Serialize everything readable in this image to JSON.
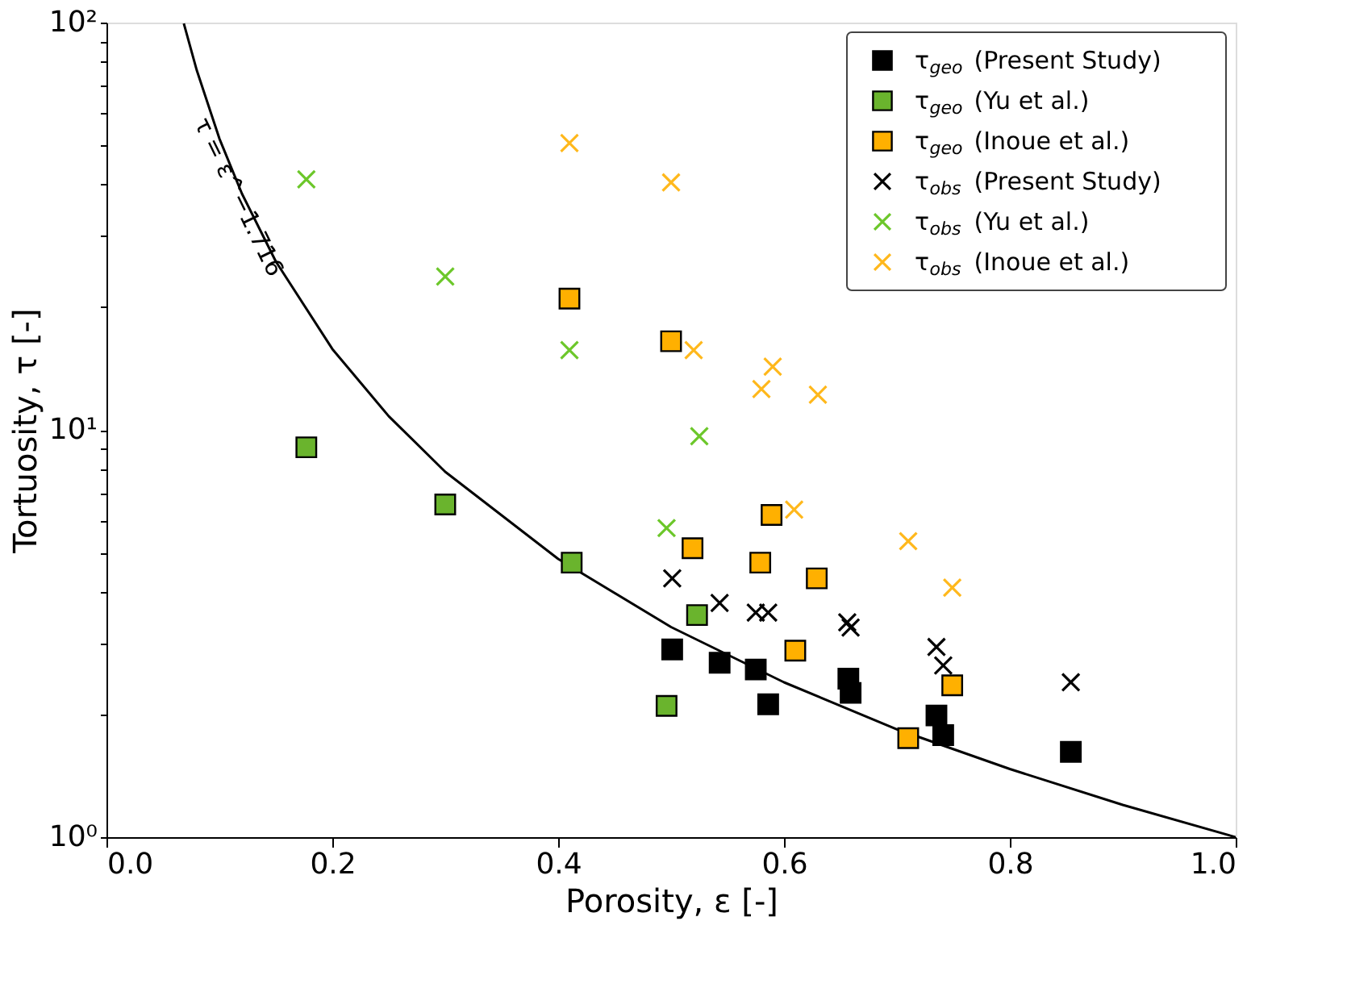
{
  "chart_data": {
    "type": "scatter",
    "xlabel": "Porosity, ε [-]",
    "ylabel": "Tortuosity, τ [-]",
    "log": "y",
    "grid": false,
    "legend": "top right",
    "xlim": [
      0,
      1
    ],
    "ylim": [
      1,
      100
    ],
    "xticks": [
      {
        "value": 0,
        "label": "0.0"
      },
      {
        "value": 0.2,
        "label": "0.2"
      },
      {
        "value": 0.4,
        "label": "0.4"
      },
      {
        "value": 0.6,
        "label": "0.6"
      },
      {
        "value": 0.8,
        "label": "0.8"
      },
      {
        "value": 1,
        "label": "1.0"
      }
    ],
    "yticks": [
      {
        "value": 1,
        "label": "10⁰"
      },
      {
        "value": 2,
        "label": null
      },
      {
        "value": 3,
        "label": null
      },
      {
        "value": 4,
        "label": null
      },
      {
        "value": 5,
        "label": null
      },
      {
        "value": 6,
        "label": null
      },
      {
        "value": 7,
        "label": null
      },
      {
        "value": 8,
        "label": null
      },
      {
        "value": 9,
        "label": null
      },
      {
        "value": 10,
        "label": "10¹"
      },
      {
        "value": 20,
        "label": null
      },
      {
        "value": 30,
        "label": null
      },
      {
        "value": 40,
        "label": null
      },
      {
        "value": 50,
        "label": null
      },
      {
        "value": 60,
        "label": null
      },
      {
        "value": 70,
        "label": null
      },
      {
        "value": 80,
        "label": null
      },
      {
        "value": 90,
        "label": null
      },
      {
        "value": 100,
        "label": "10²"
      }
    ],
    "annotations": [
      "τ = ε^−1.716"
    ],
    "series": [
      {
        "type": "line",
        "color": "#000000",
        "marker": "none",
        "line_style": "solid",
        "x": [
          0.0685,
          0.08,
          0.1,
          0.12,
          0.15,
          0.2,
          0.25,
          0.3,
          0.4,
          0.5,
          0.6,
          0.7,
          0.8,
          0.9,
          1.0
        ],
        "values": [
          99.5,
          76.3,
          51.9,
          38.0,
          25.9,
          15.8,
          10.8,
          7.89,
          4.82,
          3.28,
          2.4,
          1.84,
          1.47,
          1.2,
          1.0
        ]
      },
      {
        "name": "τ$_{geo}$ (Present Study)",
        "marker": "square",
        "color": "#000000",
        "x": [
          0.501,
          0.543,
          0.575,
          0.586,
          0.657,
          0.659,
          0.735,
          0.741,
          0.854
        ],
        "values": [
          2.89,
          2.68,
          2.58,
          2.12,
          2.45,
          2.26,
          1.99,
          1.78,
          1.62
        ]
      },
      {
        "name": "τ$_{geo}$ (Yu et al.)",
        "marker": "square",
        "color": "#6ab42d",
        "x": [
          0.177,
          0.3,
          0.412,
          0.523,
          0.496
        ],
        "values": [
          9.06,
          6.56,
          4.72,
          3.51,
          2.1
        ]
      },
      {
        "name": "τ$_{geo}$ (Inoue et al.)",
        "marker": "square",
        "color": "#ffb000",
        "x": [
          0.41,
          0.5,
          0.589,
          0.519,
          0.579,
          0.629,
          0.61,
          0.749,
          0.71
        ],
        "values": [
          21.0,
          16.5,
          6.18,
          5.12,
          4.72,
          4.32,
          2.87,
          2.36,
          1.75
        ]
      },
      {
        "name": "τ$_{obs}$ (Present Study)",
        "marker": "cross",
        "color": "#000000",
        "x": [
          0.501,
          0.543,
          0.575,
          0.586,
          0.656,
          0.659,
          0.735,
          0.741,
          0.854
        ],
        "values": [
          4.32,
          3.76,
          3.56,
          3.56,
          3.37,
          3.27,
          2.93,
          2.64,
          2.4
        ]
      },
      {
        "name": "τ$_{obs}$ (Yu et al.)",
        "marker": "cross",
        "color": "#6cc72a",
        "x": [
          0.177,
          0.3,
          0.41,
          0.525,
          0.496
        ],
        "values": [
          41.2,
          23.8,
          15.7,
          9.65,
          5.74
        ]
      },
      {
        "name": "τ$_{obs}$ (Inoue et al.)",
        "marker": "cross",
        "color": "#ffb81c",
        "x": [
          0.41,
          0.5,
          0.52,
          0.59,
          0.58,
          0.63,
          0.609,
          0.71,
          0.749
        ],
        "values": [
          50.6,
          40.5,
          15.7,
          14.3,
          12.6,
          12.2,
          6.37,
          5.33,
          4.1
        ]
      }
    ]
  }
}
